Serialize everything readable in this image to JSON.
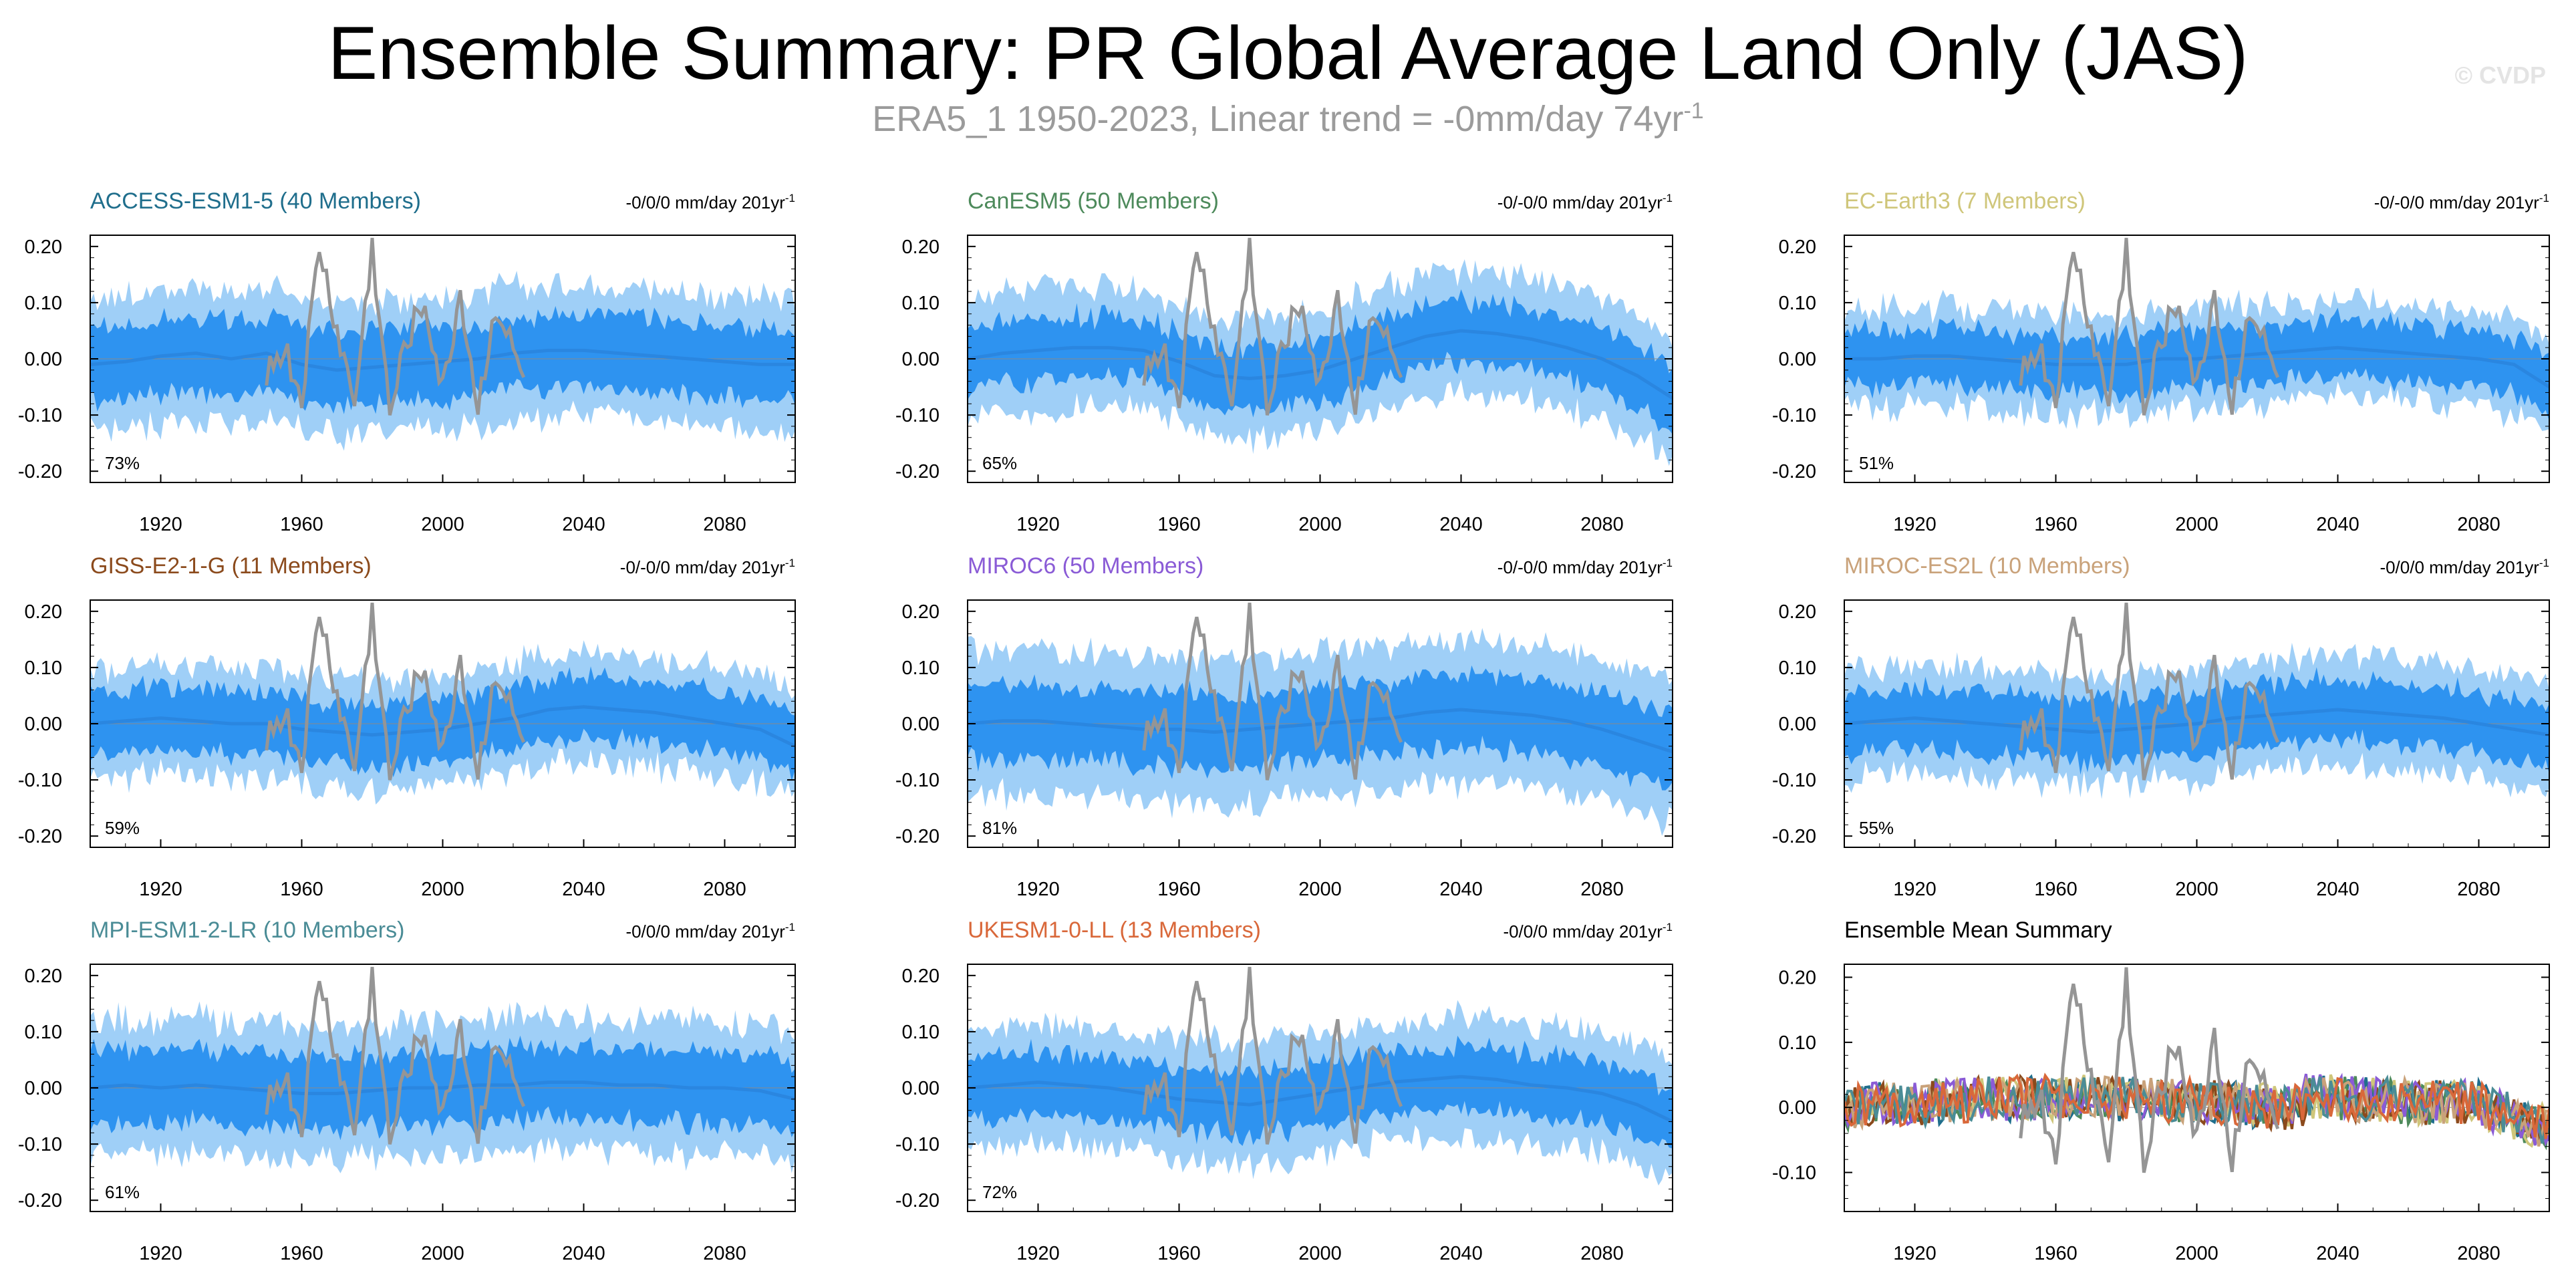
{
  "title": "Ensemble Summary: PR Global Average Land Only (JAS)",
  "subtitle": {
    "prefix": "ERA5_1 1950-2023, Linear trend = -0mm/day 74yr",
    "sup": "-1"
  },
  "watermark": "© CVDP",
  "colors": {
    "band_outer": "#9fcff7",
    "band_inner": "#2e93f0",
    "ens_mean": "#2a86e0",
    "obs": "#959595",
    "axis": "#000000"
  },
  "chart_data": [
    {
      "type": "area",
      "title": "ACCESS-ESM1-5 (40 Members)",
      "title_color": "#1f6e8c",
      "trend_label": "-0/0/0 mm/day 201yr",
      "trend_sup": "-1",
      "pct_label": "73%",
      "xlim": [
        1900,
        2100
      ],
      "ylim": [
        -0.22,
        0.22
      ],
      "xticks": [
        1920,
        1960,
        2000,
        2040,
        2080
      ],
      "yticks": [
        "0.20",
        "0.10",
        "0.00",
        "-0.10",
        "-0.20"
      ],
      "series": [
        {
          "role": "ensemble_spread_outer"
        },
        {
          "role": "ensemble_spread_inner"
        },
        {
          "role": "ensemble_mean"
        },
        {
          "role": "observations",
          "x_range": [
            1950,
            2023
          ]
        }
      ],
      "x": [
        1900,
        1910,
        1920,
        1930,
        1940,
        1950,
        1960,
        1970,
        1980,
        1990,
        2000,
        2010,
        2020,
        2030,
        2040,
        2050,
        2060,
        2070,
        2080,
        2090,
        2100
      ],
      "ens_mean": [
        -0.01,
        -0.005,
        0.005,
        0.01,
        0.0,
        0.01,
        -0.01,
        -0.02,
        -0.015,
        -0.01,
        -0.005,
        0.0,
        0.01,
        0.015,
        0.015,
        0.01,
        0.005,
        0.0,
        -0.005,
        -0.01,
        -0.01
      ],
      "inner_half": 0.06,
      "outer_half": 0.11,
      "obs": [
        -0.02,
        0.02,
        -0.07,
        0.2,
        0.05,
        -0.08,
        0.2,
        -0.1,
        0.04,
        0.1,
        -0.06,
        0.12,
        -0.09,
        0.1,
        -0.04
      ]
    },
    {
      "type": "area",
      "title": "CanESM5 (50 Members)",
      "title_color": "#4d8a5b",
      "trend_label": "-0/-0/0 mm/day 201yr",
      "trend_sup": "-1",
      "pct_label": "65%",
      "xlim": [
        1900,
        2100
      ],
      "ylim": [
        -0.22,
        0.22
      ],
      "xticks": [
        1920,
        1960,
        2000,
        2040,
        2080
      ],
      "yticks": [
        "0.20",
        "0.10",
        "0.00",
        "-0.10",
        "-0.20"
      ],
      "x": [
        1900,
        1910,
        1920,
        1930,
        1940,
        1950,
        1960,
        1970,
        1980,
        1990,
        2000,
        2010,
        2020,
        2030,
        2040,
        2050,
        2060,
        2070,
        2080,
        2090,
        2100
      ],
      "ens_mean": [
        0.0,
        0.01,
        0.015,
        0.02,
        0.02,
        0.015,
        -0.005,
        -0.03,
        -0.035,
        -0.03,
        -0.02,
        0.0,
        0.02,
        0.04,
        0.05,
        0.045,
        0.035,
        0.02,
        0.0,
        -0.03,
        -0.07
      ],
      "inner_half": 0.05,
      "outer_half": 0.1,
      "obs": [
        -0.02,
        0.02,
        -0.07,
        0.2,
        0.05,
        -0.08,
        0.2,
        -0.1,
        0.04,
        0.1,
        -0.06,
        0.12,
        -0.09,
        0.1,
        -0.04
      ]
    },
    {
      "type": "area",
      "title": "EC-Earth3 (7 Members)",
      "title_color": "#cfc67a",
      "trend_label": "-0/-0/0 mm/day 201yr",
      "trend_sup": "-1",
      "pct_label": "51%",
      "xlim": [
        1900,
        2100
      ],
      "ylim": [
        -0.22,
        0.22
      ],
      "xticks": [
        1920,
        1960,
        2000,
        2040,
        2080
      ],
      "yticks": [
        "0.20",
        "0.10",
        "0.00",
        "-0.10",
        "-0.20"
      ],
      "x": [
        1900,
        1910,
        1920,
        1930,
        1940,
        1950,
        1960,
        1970,
        1980,
        1990,
        2000,
        2010,
        2020,
        2030,
        2040,
        2050,
        2060,
        2070,
        2080,
        2090,
        2100
      ],
      "ens_mean": [
        0.0,
        0.0,
        0.005,
        0.005,
        0.0,
        -0.005,
        -0.01,
        -0.01,
        -0.01,
        0.0,
        0.0,
        0.005,
        0.01,
        0.015,
        0.02,
        0.015,
        0.01,
        0.005,
        0.0,
        -0.01,
        -0.05
      ],
      "inner_half": 0.045,
      "outer_half": 0.08,
      "obs": [
        -0.02,
        0.02,
        -0.07,
        0.2,
        0.05,
        -0.08,
        0.2,
        -0.1,
        0.04,
        0.1,
        -0.06,
        0.12,
        -0.09,
        0.1,
        -0.04
      ]
    },
    {
      "type": "area",
      "title": "GISS-E2-1-G (11 Members)",
      "title_color": "#8b4a1c",
      "trend_label": "-0/-0/0 mm/day 201yr",
      "trend_sup": "-1",
      "pct_label": "59%",
      "xlim": [
        1900,
        2100
      ],
      "ylim": [
        -0.22,
        0.22
      ],
      "xticks": [
        1920,
        1960,
        2000,
        2040,
        2080
      ],
      "yticks": [
        "0.20",
        "0.10",
        "0.00",
        "-0.10",
        "-0.20"
      ],
      "x": [
        1900,
        1910,
        1920,
        1930,
        1940,
        1950,
        1960,
        1970,
        1980,
        1990,
        2000,
        2010,
        2020,
        2030,
        2040,
        2050,
        2060,
        2070,
        2080,
        2090,
        2100
      ],
      "ens_mean": [
        0.0,
        0.005,
        0.01,
        0.005,
        0.0,
        0.0,
        -0.01,
        -0.015,
        -0.02,
        -0.015,
        -0.01,
        0.0,
        0.01,
        0.025,
        0.03,
        0.025,
        0.02,
        0.01,
        0.0,
        -0.01,
        -0.04
      ],
      "inner_half": 0.05,
      "outer_half": 0.09,
      "obs": [
        -0.02,
        0.02,
        -0.07,
        0.2,
        0.05,
        -0.08,
        0.2,
        -0.1,
        0.04,
        0.1,
        -0.06,
        0.12,
        -0.09,
        0.1,
        -0.04
      ]
    },
    {
      "type": "area",
      "title": "MIROC6 (50 Members)",
      "title_color": "#8a5bd6",
      "trend_label": "-0/-0/0 mm/day 201yr",
      "trend_sup": "-1",
      "pct_label": "81%",
      "xlim": [
        1900,
        2100
      ],
      "ylim": [
        -0.22,
        0.22
      ],
      "xticks": [
        1920,
        1960,
        2000,
        2040,
        2080
      ],
      "yticks": [
        "0.20",
        "0.10",
        "0.00",
        "-0.10",
        "-0.20"
      ],
      "x": [
        1900,
        1910,
        1920,
        1930,
        1940,
        1950,
        1960,
        1970,
        1980,
        1990,
        2000,
        2010,
        2020,
        2030,
        2040,
        2050,
        2060,
        2070,
        2080,
        2090,
        2100
      ],
      "ens_mean": [
        0.0,
        0.005,
        0.005,
        0.0,
        -0.005,
        -0.01,
        -0.01,
        -0.015,
        -0.01,
        -0.005,
        0.0,
        0.005,
        0.01,
        0.02,
        0.025,
        0.02,
        0.015,
        0.005,
        -0.01,
        -0.03,
        -0.05
      ],
      "inner_half": 0.06,
      "outer_half": 0.12,
      "obs": [
        -0.02,
        0.02,
        -0.07,
        0.2,
        0.05,
        -0.08,
        0.2,
        -0.1,
        0.04,
        0.1,
        -0.06,
        0.12,
        -0.09,
        0.1,
        -0.04
      ]
    },
    {
      "type": "area",
      "title": "MIROC-ES2L (10 Members)",
      "title_color": "#c9a27a",
      "trend_label": "-0/0/0 mm/day 201yr",
      "trend_sup": "-1",
      "pct_label": "55%",
      "xlim": [
        1900,
        2100
      ],
      "ylim": [
        -0.22,
        0.22
      ],
      "xticks": [
        1920,
        1960,
        2000,
        2040,
        2080
      ],
      "yticks": [
        "0.20",
        "0.10",
        "0.00",
        "-0.10",
        "-0.20"
      ],
      "x": [
        1900,
        1910,
        1920,
        1930,
        1940,
        1950,
        1960,
        1970,
        1980,
        1990,
        2000,
        2010,
        2020,
        2030,
        2040,
        2050,
        2060,
        2070,
        2080,
        2090,
        2100
      ],
      "ens_mean": [
        0.0,
        0.005,
        0.01,
        0.005,
        0.0,
        -0.005,
        -0.01,
        -0.015,
        -0.01,
        -0.005,
        0.0,
        0.01,
        0.015,
        0.02,
        0.025,
        0.02,
        0.015,
        0.01,
        0.0,
        -0.01,
        -0.02
      ],
      "inner_half": 0.05,
      "outer_half": 0.09,
      "obs": [
        -0.02,
        0.02,
        -0.07,
        0.2,
        0.05,
        -0.08,
        0.2,
        -0.1,
        0.04,
        0.1,
        -0.06,
        0.12,
        -0.09,
        0.1,
        -0.04
      ]
    },
    {
      "type": "area",
      "title": "MPI-ESM1-2-LR (10 Members)",
      "title_color": "#4a8c96",
      "trend_label": "-0/0/0 mm/day 201yr",
      "trend_sup": "-1",
      "pct_label": "61%",
      "xlim": [
        1900,
        2100
      ],
      "ylim": [
        -0.22,
        0.22
      ],
      "xticks": [
        1920,
        1960,
        2000,
        2040,
        2080
      ],
      "yticks": [
        "0.20",
        "0.10",
        "0.00",
        "-0.10",
        "-0.20"
      ],
      "x": [
        1900,
        1910,
        1920,
        1930,
        1940,
        1950,
        1960,
        1970,
        1980,
        1990,
        2000,
        2010,
        2020,
        2030,
        2040,
        2050,
        2060,
        2070,
        2080,
        2090,
        2100
      ],
      "ens_mean": [
        0.0,
        0.005,
        0.0,
        0.005,
        0.0,
        -0.005,
        -0.01,
        -0.01,
        -0.005,
        0.0,
        0.0,
        0.005,
        0.005,
        0.01,
        0.01,
        0.005,
        0.005,
        0.0,
        0.0,
        -0.005,
        -0.02
      ],
      "inner_half": 0.06,
      "outer_half": 0.11,
      "obs": [
        -0.02,
        0.02,
        -0.07,
        0.2,
        0.05,
        -0.08,
        0.2,
        -0.1,
        0.04,
        0.1,
        -0.06,
        0.12,
        -0.09,
        0.1,
        -0.04
      ]
    },
    {
      "type": "area",
      "title": "UKESM1-0-LL (13 Members)",
      "title_color": "#d9683a",
      "trend_label": "-0/0/0 mm/day 201yr",
      "trend_sup": "-1",
      "pct_label": "72%",
      "xlim": [
        1900,
        2100
      ],
      "ylim": [
        -0.22,
        0.22
      ],
      "xticks": [
        1920,
        1960,
        2000,
        2040,
        2080
      ],
      "yticks": [
        "0.20",
        "0.10",
        "0.00",
        "-0.10",
        "-0.20"
      ],
      "x": [
        1900,
        1910,
        1920,
        1930,
        1940,
        1950,
        1960,
        1970,
        1980,
        1990,
        2000,
        2010,
        2020,
        2030,
        2040,
        2050,
        2060,
        2070,
        2080,
        2090,
        2100
      ],
      "ens_mean": [
        0.0,
        0.005,
        0.01,
        0.005,
        0.0,
        -0.01,
        -0.02,
        -0.025,
        -0.03,
        -0.02,
        -0.01,
        0.0,
        0.01,
        0.015,
        0.02,
        0.015,
        0.005,
        0.0,
        -0.01,
        -0.03,
        -0.06
      ],
      "inner_half": 0.05,
      "outer_half": 0.1,
      "obs": [
        -0.02,
        0.02,
        -0.07,
        0.2,
        0.05,
        -0.08,
        0.2,
        -0.1,
        0.04,
        0.1,
        -0.06,
        0.12,
        -0.09,
        0.1,
        -0.04
      ]
    },
    {
      "type": "line",
      "title": "Ensemble Mean Summary",
      "title_color": "#000000",
      "trend_label": "",
      "trend_sup": "",
      "pct_label": "",
      "xlim": [
        1900,
        2100
      ],
      "ylim": [
        -0.16,
        0.22
      ],
      "xticks": [
        1920,
        1960,
        2000,
        2040,
        2080
      ],
      "yticks": [
        "0.20",
        "0.10",
        "0.00",
        "-0.10"
      ],
      "series": [
        {
          "color": "#1f6e8c"
        },
        {
          "color": "#4d8a5b"
        },
        {
          "color": "#cfc67a"
        },
        {
          "color": "#8b4a1c"
        },
        {
          "color": "#8a5bd6"
        },
        {
          "color": "#c9a27a"
        },
        {
          "color": "#4a8c96"
        },
        {
          "color": "#d9683a"
        }
      ],
      "obs": [
        -0.02,
        0.02,
        -0.07,
        0.2,
        0.05,
        -0.08,
        0.2,
        -0.1,
        0.04,
        0.1,
        -0.06,
        0.12,
        -0.09,
        0.1,
        -0.04
      ]
    }
  ]
}
